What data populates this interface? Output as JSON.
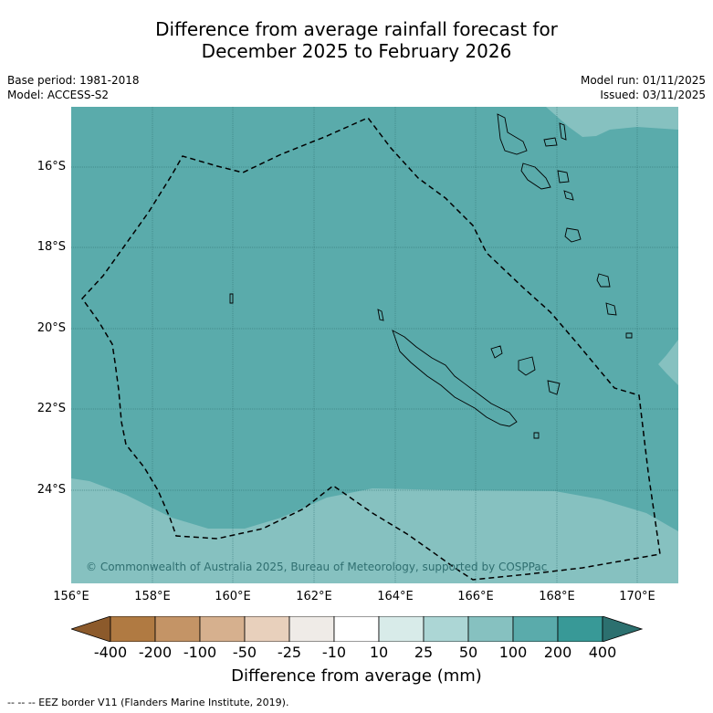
{
  "title_line1": "Difference from average rainfall forecast for",
  "title_line2": "December 2025 to February 2026",
  "meta_left": {
    "base_period": "Base period: 1981-2018",
    "model": "Model: ACCESS-S2"
  },
  "meta_right": {
    "model_run": "Model run: 01/11/2025",
    "issued": "Issued: 03/11/2025"
  },
  "lat_labels": [
    "16°S",
    "18°S",
    "20°S",
    "22°S",
    "24°S"
  ],
  "lon_labels": [
    "156°E",
    "158°E",
    "160°E",
    "162°E",
    "164°E",
    "166°E",
    "168°E",
    "170°E"
  ],
  "copyright": "© Commonwealth of Australia 2025, Bureau of Meteorology, supported by COSPPac",
  "colorbar": {
    "title": "Difference from average (mm)",
    "labels": [
      "-400",
      "-200",
      "-100",
      "-50",
      "-25",
      "-10",
      "10",
      "25",
      "50",
      "100",
      "200",
      "400"
    ],
    "colors": [
      "#8c5a2b",
      "#b07a42",
      "#c49466",
      "#d6b08e",
      "#e8d0bc",
      "#efebe7",
      "#ffffff",
      "#d8ebe9",
      "#acd6d5",
      "#86c1c0",
      "#5aabab",
      "#389997",
      "#2c706f"
    ]
  },
  "legend_footer": "--  --  -- EEZ border V11 (Flanders Marine Institute, 2019).",
  "map_colors": {
    "main": "#5aabab",
    "light": "#86c1c0"
  }
}
